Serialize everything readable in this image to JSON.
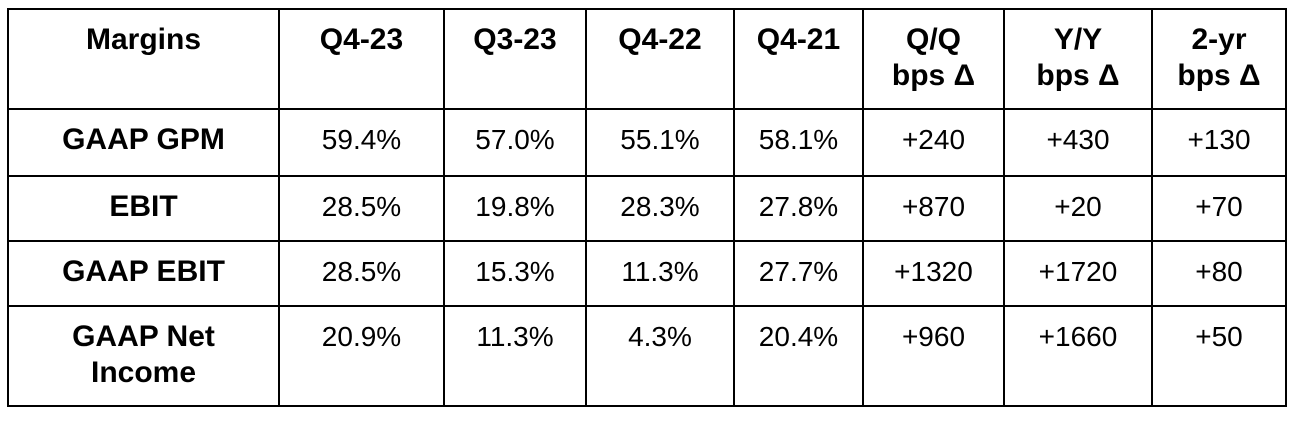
{
  "style": {
    "background_color": "#ffffff",
    "text_color": "#000000",
    "border_color": "#000000"
  },
  "table": {
    "header_cells": [
      "Margins",
      "Q4-23",
      "Q3-23",
      "Q4-22",
      "Q4-21",
      "Q/Q\nbps Δ",
      "Y/Y\nbps Δ",
      "2-yr\nbps Δ"
    ]
  },
  "chart_data": {
    "type": "table",
    "title": "Margins",
    "columns": [
      "Margins",
      "Q4-23",
      "Q3-23",
      "Q4-22",
      "Q4-21",
      "Q/Q bps Δ",
      "Y/Y bps Δ",
      "2-yr bps Δ"
    ],
    "rows": [
      {
        "label": "GAAP GPM",
        "values": [
          "59.4%",
          "57.0%",
          "55.1%",
          "58.1%",
          "+240",
          "+430",
          "+130"
        ]
      },
      {
        "label": "EBIT",
        "values": [
          "28.5%",
          "19.8%",
          "28.3%",
          "27.8%",
          "+870",
          "+20",
          "+70"
        ]
      },
      {
        "label": "GAAP EBIT",
        "values": [
          "28.5%",
          "15.3%",
          "11.3%",
          "27.7%",
          "+1320",
          "+1720",
          "+80"
        ]
      },
      {
        "label": "GAAP Net Income",
        "values": [
          "20.9%",
          "11.3%",
          "4.3%",
          "20.4%",
          "+960",
          "+1660",
          "+50"
        ]
      }
    ]
  }
}
